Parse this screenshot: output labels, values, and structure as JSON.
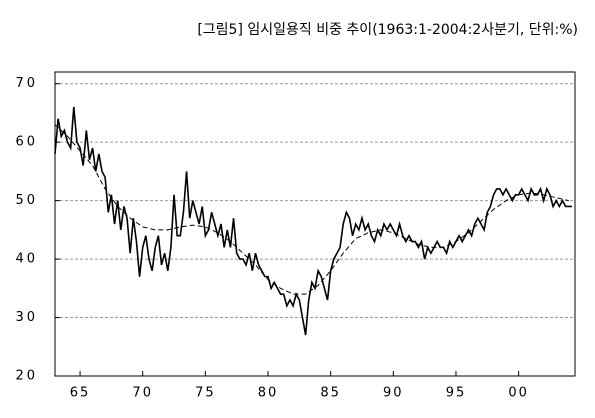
{
  "chart_data": {
    "type": "line",
    "title": "[그림5] 임시일용직 비중 추이(1963:1-2004:2사분기, 단위:%)",
    "xlim": [
      1963,
      2004.5
    ],
    "ylim": [
      20,
      72
    ],
    "yticks": [
      20,
      30,
      40,
      50,
      60,
      70
    ],
    "xticks": [
      {
        "value": 1965,
        "label": "65"
      },
      {
        "value": 1970,
        "label": "70"
      },
      {
        "value": 1975,
        "label": "75"
      },
      {
        "value": 1980,
        "label": "80"
      },
      {
        "value": 1985,
        "label": "85"
      },
      {
        "value": 1990,
        "label": "90"
      },
      {
        "value": 1995,
        "label": "95"
      },
      {
        "value": 2000,
        "label": "00"
      }
    ],
    "grid": true,
    "series": [
      {
        "color": "#000000",
        "dash": false,
        "x": [
          1963,
          1963.25,
          1963.5,
          1963.75,
          1964,
          1964.25,
          1964.5,
          1964.75,
          1965,
          1965.25,
          1965.5,
          1965.75,
          1966,
          1966.25,
          1966.5,
          1966.75,
          1967,
          1967.25,
          1967.5,
          1967.75,
          1968,
          1968.25,
          1968.5,
          1968.75,
          1969,
          1969.25,
          1969.5,
          1969.75,
          1970,
          1970.25,
          1970.5,
          1970.75,
          1971,
          1971.25,
          1971.5,
          1971.75,
          1972,
          1972.25,
          1972.5,
          1972.75,
          1973,
          1973.25,
          1973.5,
          1973.75,
          1974,
          1974.25,
          1974.5,
          1974.75,
          1975,
          1975.25,
          1975.5,
          1975.75,
          1976,
          1976.25,
          1976.5,
          1976.75,
          1977,
          1977.25,
          1977.5,
          1977.75,
          1978,
          1978.25,
          1978.5,
          1978.75,
          1979,
          1979.25,
          1979.5,
          1979.75,
          1980,
          1980.25,
          1980.5,
          1980.75,
          1981,
          1981.25,
          1981.5,
          1981.75,
          1982,
          1982.25,
          1982.5,
          1982.75,
          1983,
          1983.25,
          1983.5,
          1983.75,
          1984,
          1984.25,
          1984.5,
          1984.75,
          1985,
          1985.25,
          1985.5,
          1985.75,
          1986,
          1986.25,
          1986.5,
          1986.75,
          1987,
          1987.25,
          1987.5,
          1987.75,
          1988,
          1988.25,
          1988.5,
          1988.75,
          1989,
          1989.25,
          1989.5,
          1989.75,
          1990,
          1990.25,
          1990.5,
          1990.75,
          1991,
          1991.25,
          1991.5,
          1991.75,
          1992,
          1992.25,
          1992.5,
          1992.75,
          1993,
          1993.25,
          1993.5,
          1993.75,
          1994,
          1994.25,
          1994.5,
          1994.75,
          1995,
          1995.25,
          1995.5,
          1995.75,
          1996,
          1996.25,
          1996.5,
          1996.75,
          1997,
          1997.25,
          1997.5,
          1997.75,
          1998,
          1998.25,
          1998.5,
          1998.75,
          1999,
          1999.25,
          1999.5,
          1999.75,
          2000,
          2000.25,
          2000.5,
          2000.75,
          2001,
          2001.25,
          2001.5,
          2001.75,
          2002,
          2002.25,
          2002.5,
          2002.75,
          2003,
          2003.25,
          2003.5,
          2003.75,
          2004,
          2004.25
        ],
        "values": [
          58,
          64,
          61,
          62,
          60,
          59,
          66,
          60,
          59,
          56,
          62,
          57,
          59,
          55,
          58,
          55,
          54,
          48,
          51,
          46,
          50,
          45,
          49,
          47,
          41,
          47,
          43,
          37,
          42,
          44,
          40,
          38,
          42,
          44,
          39,
          41,
          38,
          42,
          51,
          44,
          44,
          48,
          55,
          47,
          50,
          48,
          46,
          49,
          44,
          45,
          48,
          46,
          44,
          46,
          42,
          45,
          42,
          47,
          41,
          40,
          40,
          39,
          41,
          38,
          41,
          39,
          38,
          37,
          37,
          35,
          36,
          35,
          34,
          34,
          32,
          33,
          32,
          34,
          33,
          30,
          27,
          33,
          36,
          35,
          38,
          37,
          35,
          33,
          38,
          40,
          41,
          42,
          46,
          48,
          47,
          44,
          46,
          45,
          47,
          45,
          46,
          44,
          43,
          45,
          44,
          46,
          45,
          46,
          45,
          44,
          46,
          44,
          43,
          44,
          43,
          43,
          42,
          43,
          40,
          42,
          41,
          42,
          43,
          42,
          42,
          41,
          43,
          42,
          43,
          44,
          43,
          44,
          45,
          44,
          46,
          47,
          46,
          45,
          48,
          49,
          51,
          52,
          52,
          51,
          52,
          51,
          50,
          51,
          51,
          52,
          51,
          50,
          52,
          51,
          51,
          52,
          50,
          52,
          51,
          49,
          50,
          49,
          50,
          49,
          49,
          49
        ]
      },
      {
        "color": "#000000",
        "dash": true,
        "x": [
          1963,
          1964,
          1965,
          1966,
          1967,
          1968,
          1969,
          1970,
          1971,
          1972,
          1973,
          1974,
          1975,
          1976,
          1977,
          1978,
          1979,
          1980,
          1981,
          1982,
          1983,
          1984,
          1985,
          1986,
          1987,
          1988,
          1989,
          1990,
          1991,
          1992,
          1993,
          1994,
          1995,
          1996,
          1997,
          1998,
          1999,
          2000,
          2001,
          2002,
          2003,
          2004
        ],
        "values": [
          63,
          61,
          58.5,
          56,
          52,
          49,
          47,
          45.5,
          45,
          45,
          45.5,
          45.8,
          45.5,
          44.5,
          43,
          41,
          39,
          36.5,
          35,
          34,
          34,
          35.5,
          38,
          41,
          43.5,
          44.5,
          45,
          44.5,
          43.5,
          42.5,
          42,
          42,
          43,
          44.5,
          46.5,
          48.5,
          50,
          51,
          51.3,
          51,
          50.5,
          50
        ]
      }
    ]
  }
}
